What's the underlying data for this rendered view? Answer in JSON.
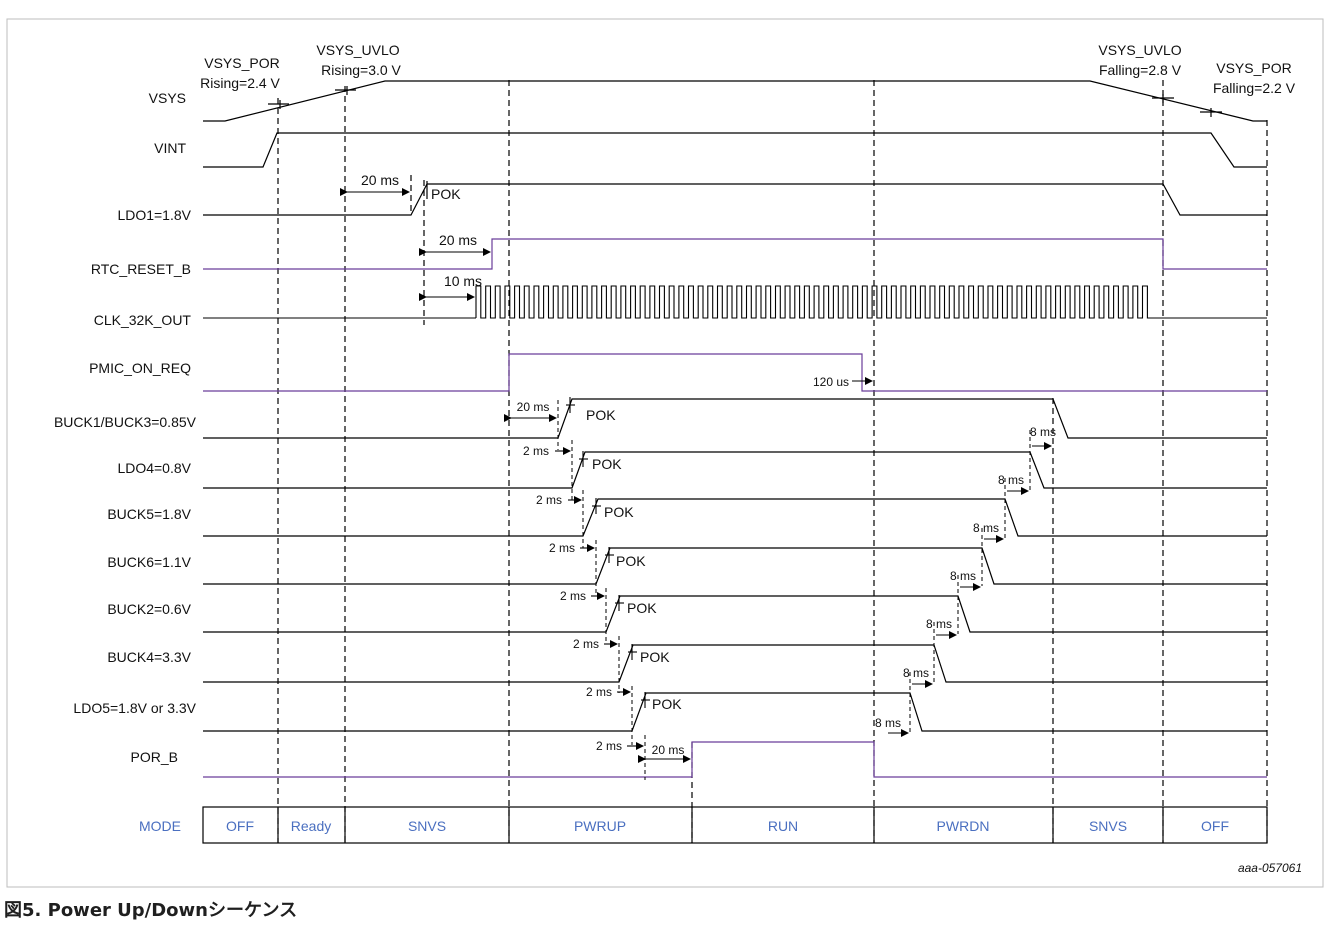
{
  "colors": {
    "accent": "#6a3d9a",
    "mode": "#4a6fc0",
    "line": "#000000"
  },
  "annotations": {
    "vsys_por_rising": [
      "VSYS_POR",
      "Rising=2.4 V"
    ],
    "vsys_uvlo_rising": [
      "VSYS_UVLO",
      "Rising=3.0 V"
    ],
    "vsys_uvlo_falling": [
      "VSYS_UVLO",
      "Falling=2.8 V"
    ],
    "vsys_por_falling": [
      "VSYS_POR",
      "Falling=2.2 V"
    ]
  },
  "signals": [
    {
      "id": "vsys",
      "label": "VSYS",
      "accent": false
    },
    {
      "id": "vint",
      "label": "VINT",
      "accent": false
    },
    {
      "id": "ldo1",
      "label": "LDO1=1.8V",
      "accent": false
    },
    {
      "id": "rtc_reset_b",
      "label": "RTC_RESET_B",
      "accent": true
    },
    {
      "id": "clk_32k_out",
      "label": "CLK_32K_OUT",
      "accent": false
    },
    {
      "id": "pmic_on_req",
      "label": "PMIC_ON_REQ",
      "accent": true
    },
    {
      "id": "buck1_buck3",
      "label": "BUCK1/BUCK3=0.85V",
      "accent": false
    },
    {
      "id": "ldo4",
      "label": "LDO4=0.8V",
      "accent": false
    },
    {
      "id": "buck5",
      "label": "BUCK5=1.8V",
      "accent": false
    },
    {
      "id": "buck6",
      "label": "BUCK6=1.1V",
      "accent": false
    },
    {
      "id": "buck2",
      "label": "BUCK2=0.6V",
      "accent": false
    },
    {
      "id": "buck4",
      "label": "BUCK4=3.3V",
      "accent": false
    },
    {
      "id": "ldo5",
      "label": "LDO5=1.8V or 3.3V",
      "accent": false
    },
    {
      "id": "por_b",
      "label": "POR_B",
      "accent": true
    }
  ],
  "timing_labels": {
    "pok": "POK",
    "ldo1_delay": "20 ms",
    "rtc_delay": "20 ms",
    "clk_delay": "10 ms",
    "pmic_off_delay": "120 us",
    "buck1_on_delay": "20 ms",
    "step_on_delay": "2 ms",
    "step_off_delay": "8 ms",
    "por_b_delay": "20 ms"
  },
  "mode_row": {
    "label": "MODE",
    "modes": [
      "OFF",
      "Ready",
      "SNVS",
      "PWRUP",
      "RUN",
      "PWRDN",
      "SNVS",
      "OFF"
    ]
  },
  "credit": "aaa-057061",
  "caption": "図5. Power Up/Downシーケンス"
}
